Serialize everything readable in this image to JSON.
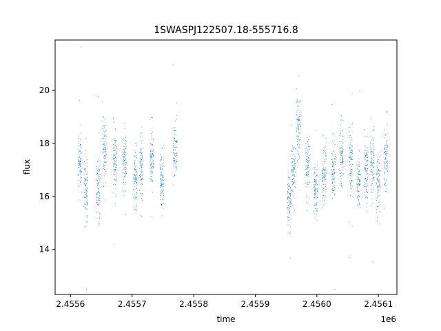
{
  "chart_data": {
    "type": "scatter",
    "title": "1SWASPJ122507.18-555716.8",
    "xlabel": "time",
    "ylabel": "flux",
    "x_offset_label": "1e6",
    "x_tick_labels": [
      "2.4556",
      "2.4557",
      "2.4558",
      "2.4559",
      "2.4560",
      "2.4561"
    ],
    "x_ticks": [
      2455600,
      2455700,
      2455800,
      2455900,
      2456000,
      2456100
    ],
    "y_ticks": [
      14,
      16,
      18,
      20
    ],
    "xlim": [
      2455575,
      2456130
    ],
    "ylim": [
      12.3,
      21.9
    ],
    "grid": false,
    "marker_color": "#1f77b4",
    "series": [
      {
        "segments": [
          {
            "x": 2455615,
            "y": 17.4
          },
          {
            "x": 2455625,
            "y": 16.2
          },
          {
            "x": 2455645,
            "y": 16.3
          },
          {
            "x": 2455655,
            "y": 17.7
          },
          {
            "x": 2455672,
            "y": 17.3
          },
          {
            "x": 2455688,
            "y": 17.2
          },
          {
            "x": 2455705,
            "y": 16.6
          },
          {
            "x": 2455715,
            "y": 17.1
          },
          {
            "x": 2455732,
            "y": 17.3
          },
          {
            "x": 2455748,
            "y": 16.6
          },
          {
            "x": 2455770,
            "y": 17.7
          },
          {
            "x": 2455955,
            "y": 15.8
          },
          {
            "x": 2455962,
            "y": 16.9
          },
          {
            "x": 2455970,
            "y": 18.7
          },
          {
            "x": 2455985,
            "y": 17.2
          },
          {
            "x": 2455998,
            "y": 16.1
          },
          {
            "x": 2456012,
            "y": 16.8
          },
          {
            "x": 2456027,
            "y": 17.0
          },
          {
            "x": 2456040,
            "y": 17.5
          },
          {
            "x": 2456055,
            "y": 17.3
          },
          {
            "x": 2456068,
            "y": 16.5
          },
          {
            "x": 2456080,
            "y": 16.9
          },
          {
            "x": 2456090,
            "y": 17.2
          },
          {
            "x": 2456100,
            "y": 16.6
          },
          {
            "x": 2456112,
            "y": 17.5
          }
        ]
      }
    ]
  }
}
